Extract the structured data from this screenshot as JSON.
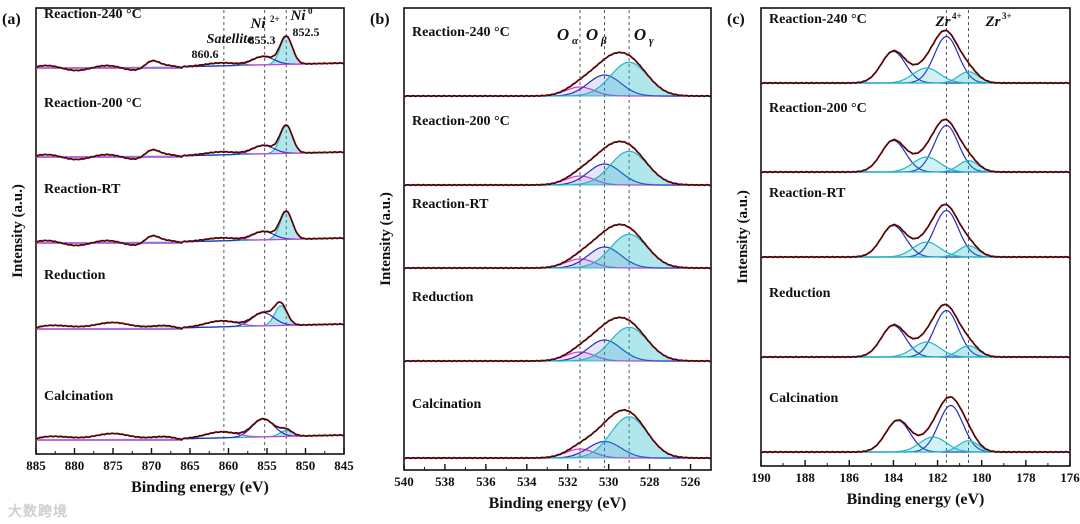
{
  "watermark": "大数跨境",
  "chart_data": [
    {
      "type": "line",
      "panel": "(a)",
      "title": "",
      "xlabel": "Binding energy (eV)",
      "ylabel": "Intensity (a.u.)",
      "xlim": [
        885,
        845
      ],
      "xticks": [
        885,
        880,
        875,
        870,
        865,
        860,
        855,
        850,
        845
      ],
      "series": [
        {
          "name": "Reaction-240 °C",
          "sample_x": [
            885,
            870,
            861,
            855.5,
            852.5,
            845
          ],
          "sample_y_rel": [
            0.0,
            0.14,
            0.07,
            0.17,
            0.46,
            0.0
          ]
        },
        {
          "name": "Reaction-200 °C",
          "sample_x": [
            885,
            870,
            861,
            855.5,
            852.5,
            845
          ],
          "sample_y_rel": [
            0.0,
            0.14,
            0.06,
            0.16,
            0.48,
            0.0
          ]
        },
        {
          "name": "Reaction-RT",
          "sample_x": [
            885,
            870,
            861,
            855.5,
            852.5,
            845
          ],
          "sample_y_rel": [
            0.0,
            0.12,
            0.05,
            0.13,
            0.47,
            0.0
          ]
        },
        {
          "name": "Reduction",
          "sample_x": [
            885,
            873,
            861,
            855.5,
            853.2,
            845
          ],
          "sample_y_rel": [
            0.0,
            0.15,
            0.12,
            0.25,
            0.33,
            0.0
          ]
        },
        {
          "name": "Calcination",
          "sample_x": [
            885,
            873,
            861,
            855.5,
            853.0,
            845
          ],
          "sample_y_rel": [
            0.0,
            0.13,
            0.11,
            0.32,
            0.1,
            0.0
          ]
        }
      ],
      "reference_lines": [
        860.6,
        855.3,
        852.5
      ],
      "annotations": [
        {
          "text": "Satellite",
          "value": "860.6"
        },
        {
          "text": "Ni",
          "sup": "2+",
          "value": "855.3"
        },
        {
          "text": "Ni",
          "sup": "0",
          "value": "852.5"
        }
      ]
    },
    {
      "type": "line",
      "panel": "(b)",
      "title": "",
      "xlabel": "Binding energy (eV)",
      "ylabel": "Intensity (a.u.)",
      "xlim": [
        540,
        525
      ],
      "xticks": [
        540,
        538,
        536,
        534,
        532,
        530,
        528,
        526
      ],
      "series": [
        {
          "name": "Reaction-240 °C",
          "components_ev": [
            531.4,
            530.2,
            529.0
          ]
        },
        {
          "name": "Reaction-200 °C",
          "components_ev": [
            531.4,
            530.2,
            529.0
          ]
        },
        {
          "name": "Reaction-RT",
          "components_ev": [
            531.4,
            530.2,
            529.0
          ]
        },
        {
          "name": "Reduction",
          "components_ev": [
            531.4,
            530.2,
            529.0
          ]
        },
        {
          "name": "Calcination",
          "components_ev": [
            531.4,
            530.2,
            529.0
          ]
        }
      ],
      "reference_lines": [
        531.4,
        530.2,
        529.0
      ],
      "annotations": [
        {
          "text": "O",
          "sub": "α"
        },
        {
          "text": "O",
          "sub": "β"
        },
        {
          "text": "O",
          "sub": "γ"
        }
      ]
    },
    {
      "type": "line",
      "panel": "(c)",
      "title": "",
      "xlabel": "Binding energy (eV)",
      "ylabel": "Intensity (a.u.)",
      "xlim": [
        190,
        176
      ],
      "xticks": [
        190,
        188,
        186,
        184,
        182,
        180,
        178,
        176
      ],
      "series": [
        {
          "name": "Reaction-240 °C",
          "components_ev": [
            184.0,
            182.5,
            181.6,
            180.6
          ]
        },
        {
          "name": "Reaction-200 °C",
          "components_ev": [
            184.0,
            182.5,
            181.6,
            180.6
          ]
        },
        {
          "name": "Reaction-RT",
          "components_ev": [
            184.0,
            182.5,
            181.6,
            180.6
          ]
        },
        {
          "name": "Reduction",
          "components_ev": [
            184.0,
            182.5,
            181.6,
            180.6
          ]
        },
        {
          "name": "Calcination",
          "components_ev": [
            183.8,
            182.2,
            181.4,
            180.6
          ]
        }
      ],
      "reference_lines": [
        181.6,
        180.6
      ],
      "annotations": [
        {
          "text": "Zr",
          "sup": "4+"
        },
        {
          "text": "Zr",
          "sup": "3+"
        }
      ]
    }
  ]
}
